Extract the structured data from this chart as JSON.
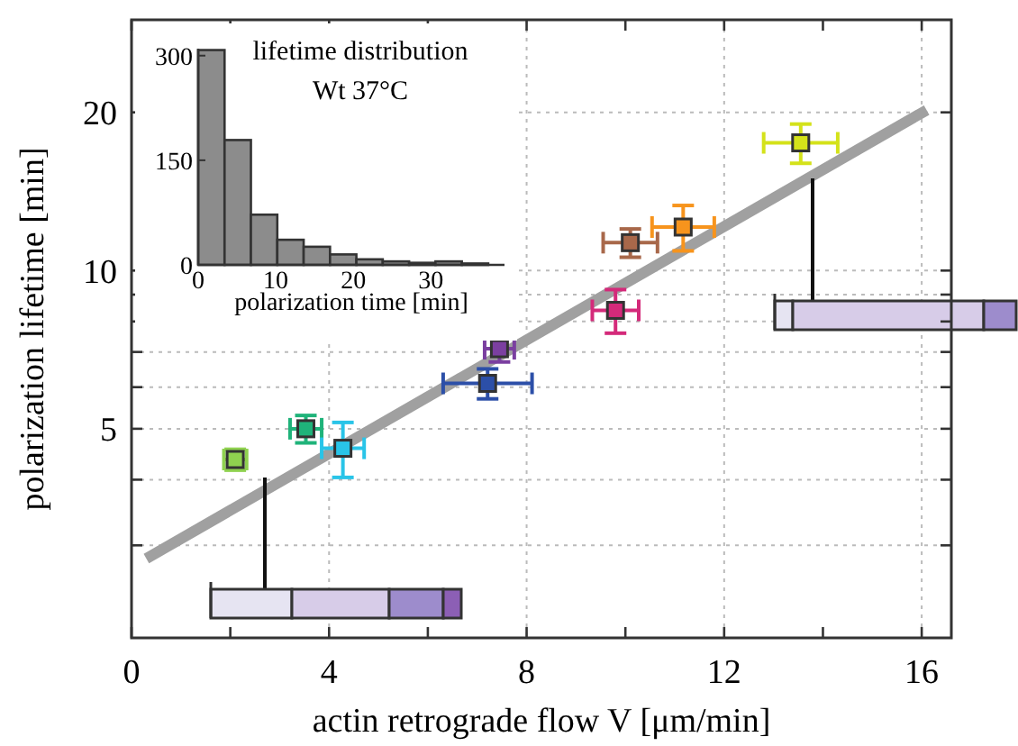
{
  "chart_data": [
    {
      "type": "scatter",
      "xlabel": "actin retrograde flow V [μm/min]",
      "ylabel": "polarization lifetime [min]",
      "log": "y",
      "xlim": [
        0,
        16.6
      ],
      "ylim": [
        2,
        30
      ],
      "xticks": [
        0,
        {
          "value": 2,
          "label": null
        },
        4,
        {
          "value": 6,
          "label": null
        },
        8,
        {
          "value": 10,
          "label": null
        },
        12,
        {
          "value": 14,
          "label": null
        },
        16
      ],
      "yticks": [
        {
          "value": 3,
          "label": null
        },
        {
          "value": 4,
          "label": null
        },
        5,
        {
          "value": 6,
          "label": null
        },
        {
          "value": 7,
          "label": null
        },
        {
          "value": 8,
          "label": null
        },
        {
          "value": 9,
          "label": null
        },
        10,
        20
      ],
      "grid": true,
      "series": [
        {
          "type": "scatter",
          "marker": "square",
          "x": [
            2.1,
            3.53,
            4.28,
            7.21,
            7.45,
            9.8,
            10.1,
            11.17,
            13.55
          ],
          "values": [
            4.37,
            5.0,
            4.59,
            6.1,
            7.1,
            8.4,
            11.3,
            12.1,
            17.5
          ],
          "colors": [
            "#8fd14f",
            "#1fb37a",
            "#29c4e8",
            "#2c4fa8",
            "#7b3fa0",
            "#d42a7a",
            "#a8684a",
            "#f7941d",
            "#d4e21a"
          ],
          "errors": [
            0.2,
            0.3,
            0.55,
            0.4,
            0.4,
            0.8,
            0.7,
            1.2,
            1.5
          ],
          "xerrors": [
            0.23,
            0.32,
            0.43,
            0.9,
            0.3,
            0.47,
            0.55,
            0.63,
            0.75
          ]
        },
        {
          "type": "line",
          "x": [
            0.3,
            16.1
          ],
          "values": [
            2.83,
            20.2
          ],
          "color": "#a0a0a0"
        }
      ]
    },
    {
      "type": "histogram",
      "title": "lifetime distribution",
      "subtitle": "Wt 37°C",
      "xlabel": "polarization time [min]",
      "bins": [
        0,
        3.4,
        6.8,
        10.2,
        13.6,
        17,
        20.4,
        23.8,
        27.2,
        30.6,
        34,
        37.4
      ],
      "values": [
        308,
        179,
        72,
        36,
        26,
        15,
        8,
        5,
        3,
        5,
        2
      ],
      "color": "#8c8c8c",
      "xlim": [
        0,
        39.5
      ],
      "ylim": [
        0,
        310
      ],
      "xticks": [
        0,
        10,
        20,
        30
      ],
      "yticks": [
        0,
        150,
        300
      ]
    }
  ]
}
